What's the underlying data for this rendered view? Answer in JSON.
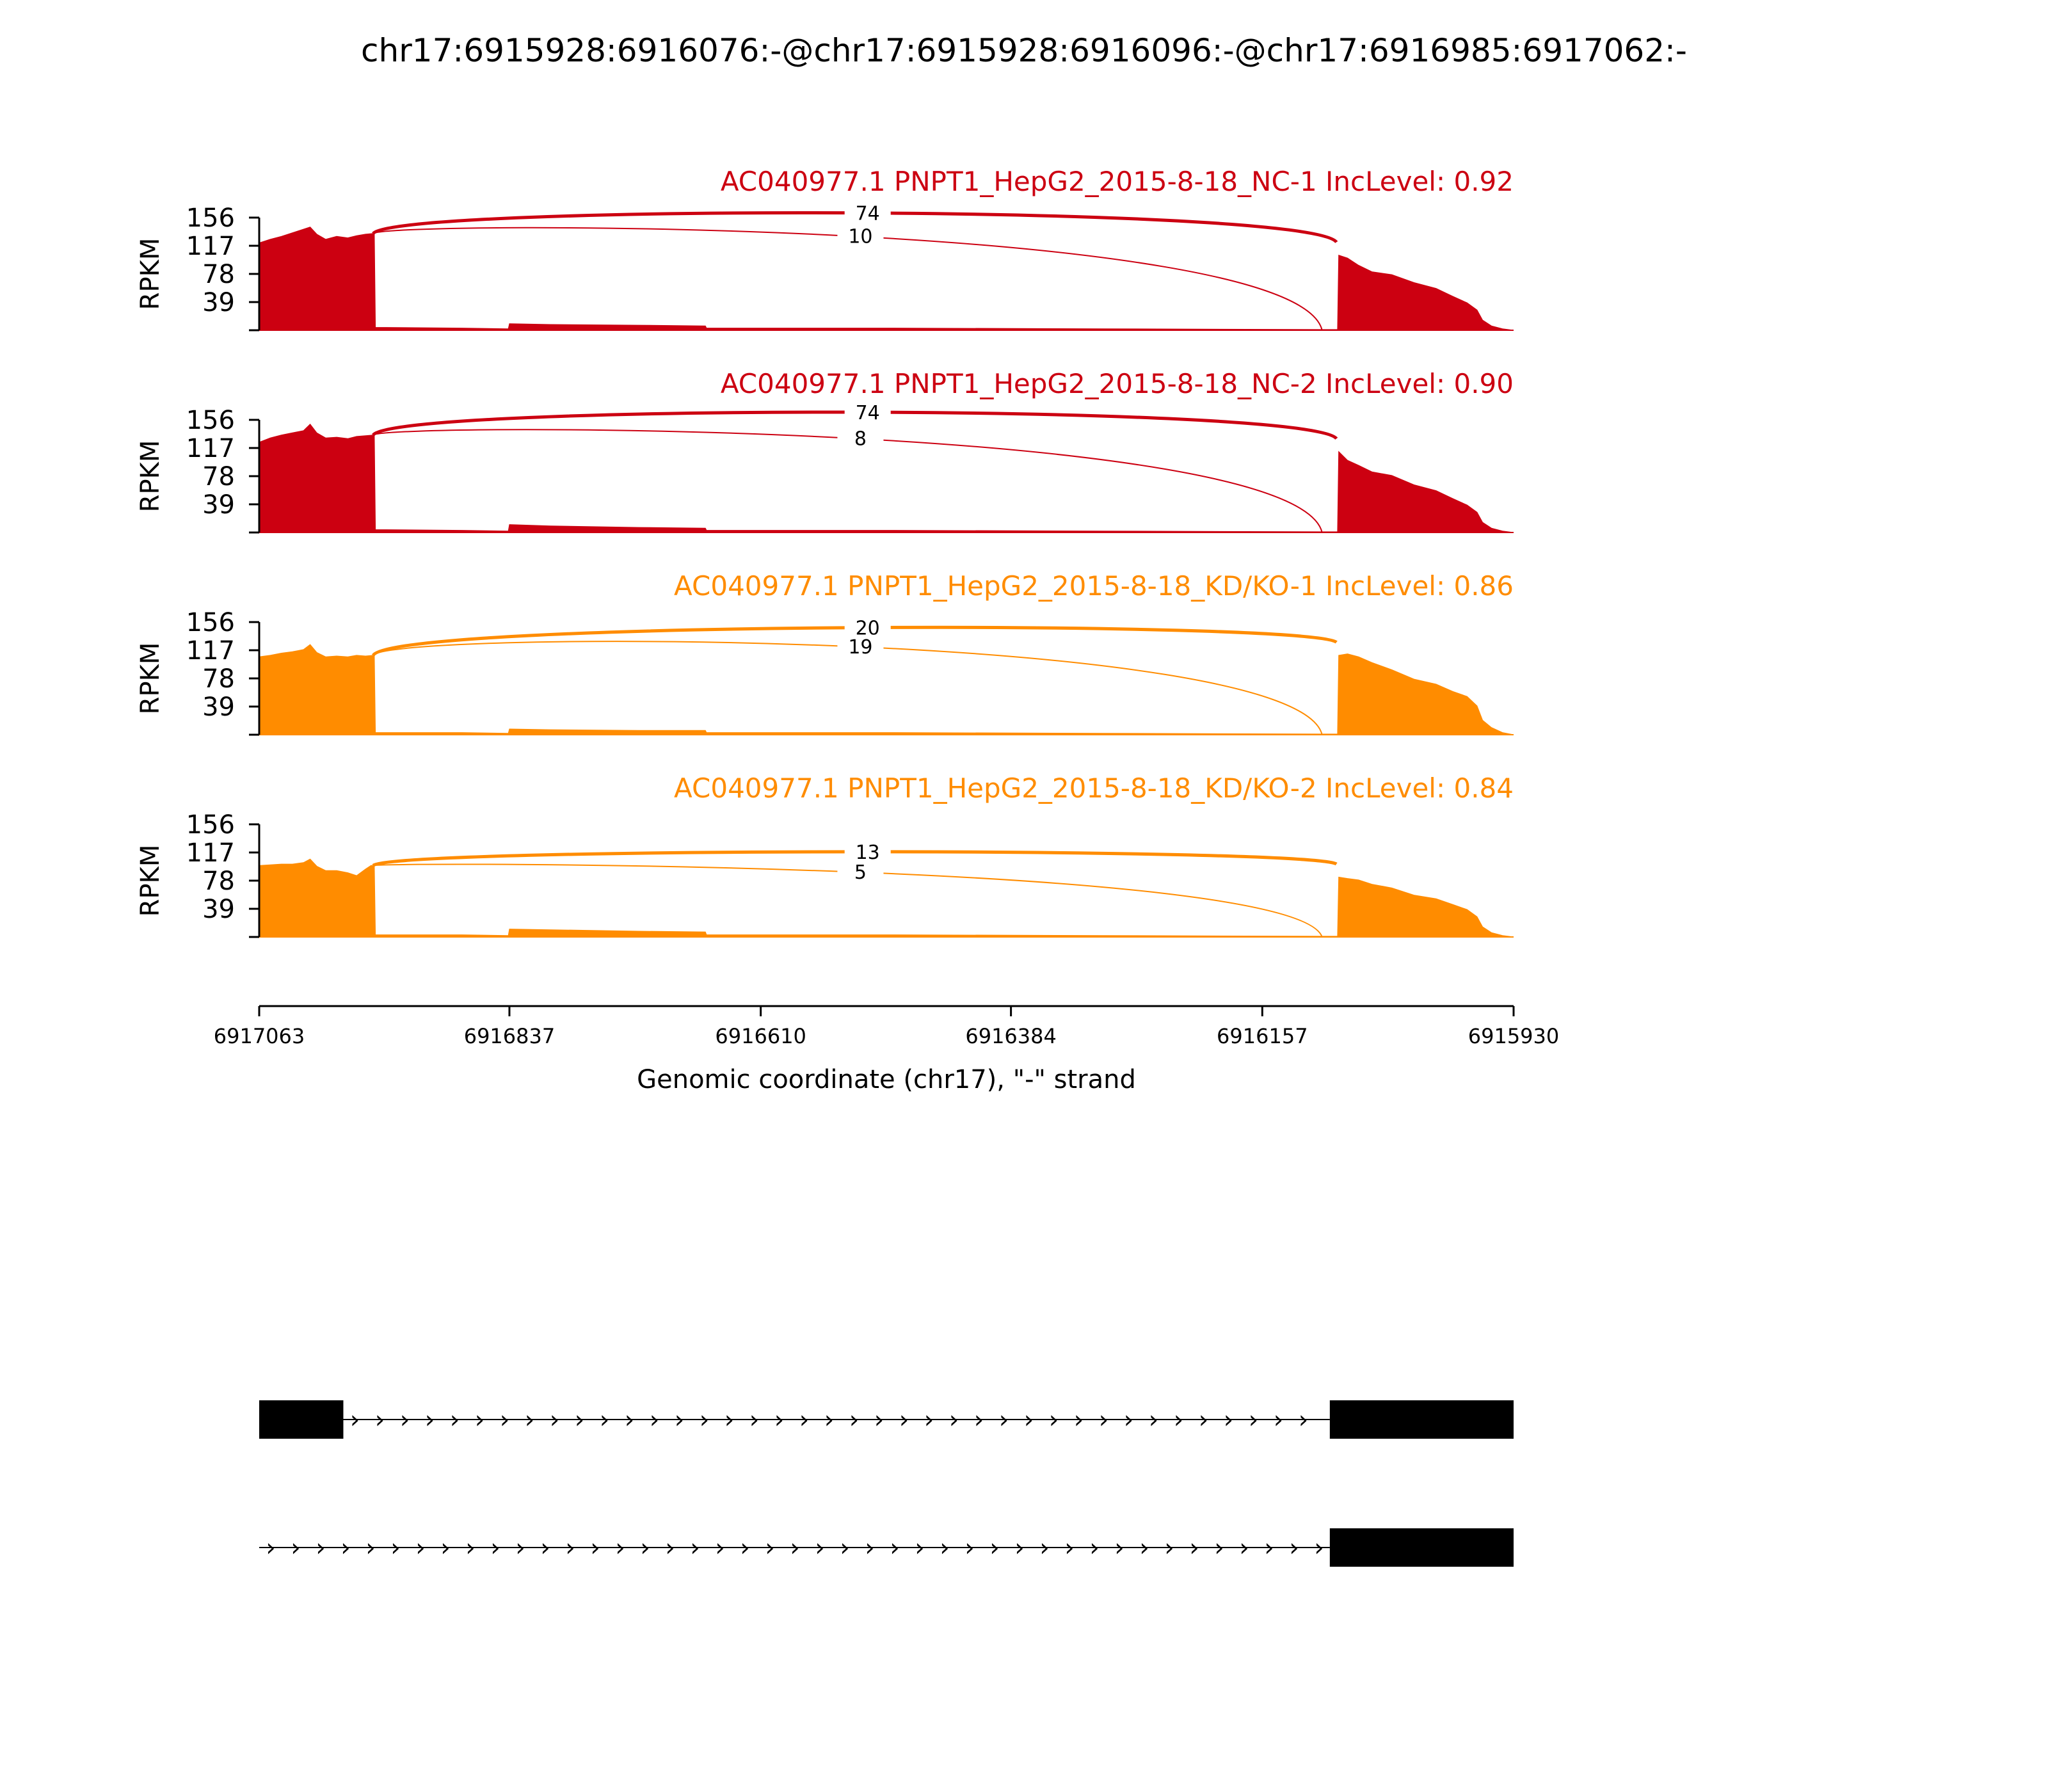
{
  "figure_title": "chr17:6915928:6916076:-@chr17:6915928:6916096:-@chr17:6916985:6917062:-",
  "chart_data": {
    "type": "area",
    "title": "chr17:6915928:6916076:-@chr17:6915928:6916096:-@chr17:6916985:6917062:-",
    "xlabel": "Genomic coordinate (chr17), \"-\" strand",
    "ylabel": "RPKM",
    "x_reversed": true,
    "xlim": [
      6917063,
      6915930
    ],
    "x_ticks": [
      6917063,
      6916837,
      6916610,
      6916384,
      6916157,
      6915930
    ],
    "ylim": [
      0,
      156
    ],
    "y_ticks": [
      39,
      78,
      117,
      156
    ],
    "tracks": [
      {
        "name": "AC040977.1 PNPT1_HepG2_2015-8-18_NC-1 IncLevel: 0.92",
        "color": "#cc0011",
        "profile": [
          [
            6917063,
            121
          ],
          [
            6917053,
            126
          ],
          [
            6917043,
            130
          ],
          [
            6917033,
            135
          ],
          [
            6917023,
            140
          ],
          [
            6917017,
            143
          ],
          [
            6917011,
            133
          ],
          [
            6917003,
            126
          ],
          [
            6916993,
            130
          ],
          [
            6916983,
            128
          ],
          [
            6916975,
            131
          ],
          [
            6916967,
            133
          ],
          [
            6916960,
            134
          ],
          [
            6916959,
            134
          ],
          [
            6916958,
            4
          ],
          [
            6916880,
            3
          ],
          [
            6916838,
            2
          ],
          [
            6916837,
            9
          ],
          [
            6916800,
            8
          ],
          [
            6916720,
            7
          ],
          [
            6916660,
            6
          ],
          [
            6916659,
            3
          ],
          [
            6916500,
            3
          ],
          [
            6916300,
            2
          ],
          [
            6916100,
            1
          ],
          [
            6916089,
            1
          ],
          [
            6916088,
            104
          ],
          [
            6916080,
            100
          ],
          [
            6916070,
            90
          ],
          [
            6916058,
            81
          ],
          [
            6916040,
            77
          ],
          [
            6916020,
            66
          ],
          [
            6916000,
            58
          ],
          [
            6915985,
            47
          ],
          [
            6915972,
            38
          ],
          [
            6915963,
            28
          ],
          [
            6915958,
            14
          ],
          [
            6915950,
            6
          ],
          [
            6915940,
            2
          ],
          [
            6915930,
            0
          ]
        ],
        "junctions": [
          {
            "from": 6916960,
            "to": 6916090,
            "count": "74",
            "peak": 174
          },
          {
            "from": 6916960,
            "to": 6916103,
            "count": "10",
            "peak": 152
          }
        ]
      },
      {
        "name": "AC040977.1 PNPT1_HepG2_2015-8-18_NC-2 IncLevel: 0.90",
        "color": "#cc0011",
        "profile": [
          [
            6917063,
            125
          ],
          [
            6917053,
            131
          ],
          [
            6917043,
            135
          ],
          [
            6917033,
            138
          ],
          [
            6917023,
            141
          ],
          [
            6917017,
            150
          ],
          [
            6917011,
            138
          ],
          [
            6917003,
            131
          ],
          [
            6916993,
            132
          ],
          [
            6916983,
            130
          ],
          [
            6916975,
            133
          ],
          [
            6916967,
            134
          ],
          [
            6916960,
            135
          ],
          [
            6916959,
            135
          ],
          [
            6916958,
            4
          ],
          [
            6916880,
            3
          ],
          [
            6916838,
            2
          ],
          [
            6916837,
            11
          ],
          [
            6916800,
            9
          ],
          [
            6916720,
            7
          ],
          [
            6916660,
            6
          ],
          [
            6916659,
            3
          ],
          [
            6916500,
            3
          ],
          [
            6916300,
            2
          ],
          [
            6916100,
            1
          ],
          [
            6916089,
            1
          ],
          [
            6916088,
            112
          ],
          [
            6916080,
            100
          ],
          [
            6916070,
            93
          ],
          [
            6916058,
            84
          ],
          [
            6916040,
            79
          ],
          [
            6916020,
            66
          ],
          [
            6916000,
            58
          ],
          [
            6915985,
            47
          ],
          [
            6915972,
            38
          ],
          [
            6915963,
            28
          ],
          [
            6915958,
            14
          ],
          [
            6915950,
            6
          ],
          [
            6915940,
            2
          ],
          [
            6915930,
            0
          ]
        ],
        "junctions": [
          {
            "from": 6916960,
            "to": 6916090,
            "count": "74",
            "peak": 178
          },
          {
            "from": 6916960,
            "to": 6916103,
            "count": "8",
            "peak": 152
          }
        ]
      },
      {
        "name": "AC040977.1 PNPT1_HepG2_2015-8-18_KD/KO-1 IncLevel: 0.86",
        "color": "#ff8c00",
        "profile": [
          [
            6917063,
            108
          ],
          [
            6917053,
            110
          ],
          [
            6917043,
            113
          ],
          [
            6917033,
            115
          ],
          [
            6917023,
            118
          ],
          [
            6917017,
            125
          ],
          [
            6917011,
            114
          ],
          [
            6917003,
            108
          ],
          [
            6916993,
            109
          ],
          [
            6916983,
            108
          ],
          [
            6916975,
            110
          ],
          [
            6916967,
            109
          ],
          [
            6916960,
            110
          ],
          [
            6916959,
            110
          ],
          [
            6916958,
            3
          ],
          [
            6916880,
            3
          ],
          [
            6916838,
            2
          ],
          [
            6916837,
            8
          ],
          [
            6916800,
            7
          ],
          [
            6916720,
            6
          ],
          [
            6916660,
            6
          ],
          [
            6916659,
            3
          ],
          [
            6916500,
            3
          ],
          [
            6916300,
            2
          ],
          [
            6916100,
            1
          ],
          [
            6916089,
            1
          ],
          [
            6916088,
            110
          ],
          [
            6916080,
            112
          ],
          [
            6916070,
            108
          ],
          [
            6916058,
            100
          ],
          [
            6916040,
            90
          ],
          [
            6916020,
            77
          ],
          [
            6916000,
            70
          ],
          [
            6915985,
            60
          ],
          [
            6915972,
            53
          ],
          [
            6915963,
            40
          ],
          [
            6915958,
            20
          ],
          [
            6915950,
            10
          ],
          [
            6915940,
            3
          ],
          [
            6915930,
            0
          ]
        ],
        "junctions": [
          {
            "from": 6916960,
            "to": 6916090,
            "count": "20",
            "peak": 158
          },
          {
            "from": 6916960,
            "to": 6916103,
            "count": "19",
            "peak": 145
          }
        ]
      },
      {
        "name": "AC040977.1 PNPT1_HepG2_2015-8-18_KD/KO-2 IncLevel: 0.84",
        "color": "#ff8c00",
        "profile": [
          [
            6917063,
            99
          ],
          [
            6917053,
            100
          ],
          [
            6917043,
            101
          ],
          [
            6917033,
            101
          ],
          [
            6917023,
            103
          ],
          [
            6917017,
            108
          ],
          [
            6917011,
            98
          ],
          [
            6917003,
            92
          ],
          [
            6916993,
            92
          ],
          [
            6916983,
            89
          ],
          [
            6916975,
            85
          ],
          [
            6916967,
            94
          ],
          [
            6916962,
            99
          ],
          [
            6916959,
            99
          ],
          [
            6916958,
            3
          ],
          [
            6916880,
            3
          ],
          [
            6916838,
            2
          ],
          [
            6916837,
            11
          ],
          [
            6916800,
            10
          ],
          [
            6916720,
            8
          ],
          [
            6916660,
            7
          ],
          [
            6916659,
            3
          ],
          [
            6916500,
            3
          ],
          [
            6916300,
            2
          ],
          [
            6916100,
            1
          ],
          [
            6916089,
            1
          ],
          [
            6916088,
            83
          ],
          [
            6916080,
            81
          ],
          [
            6916070,
            79
          ],
          [
            6916058,
            73
          ],
          [
            6916040,
            68
          ],
          [
            6916020,
            58
          ],
          [
            6916000,
            53
          ],
          [
            6915985,
            45
          ],
          [
            6915972,
            38
          ],
          [
            6915963,
            28
          ],
          [
            6915958,
            14
          ],
          [
            6915950,
            6
          ],
          [
            6915940,
            2
          ],
          [
            6915930,
            0
          ]
        ],
        "junctions": [
          {
            "from": 6916960,
            "to": 6916090,
            "count": "13",
            "peak": 124
          },
          {
            "from": 6916960,
            "to": 6916103,
            "count": "5",
            "peak": 104
          }
        ]
      }
    ],
    "isoforms": [
      {
        "exons": [
          [
            6917063,
            6916987
          ],
          [
            6916096,
            6915930
          ]
        ],
        "introns": [
          [
            6916987,
            6916096
          ]
        ],
        "strand_arrow": "›"
      },
      {
        "exons": [
          [
            6916096,
            6915930
          ]
        ],
        "introns": [
          [
            6917063,
            6916096
          ]
        ],
        "strand_arrow": "›"
      }
    ]
  }
}
